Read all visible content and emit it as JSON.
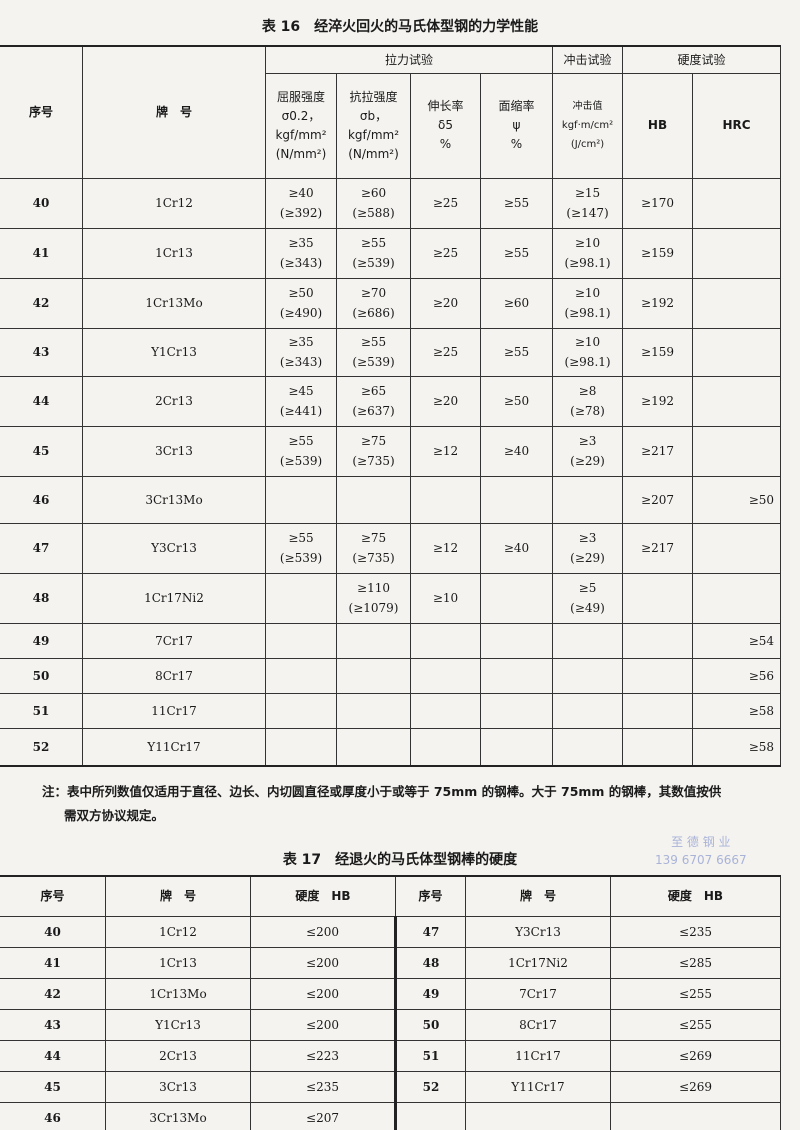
{
  "table16": {
    "title": "表 16　经淬火回火的马氏体型钢的力学性能",
    "headers": {
      "no": "序号",
      "grade": "牌　号",
      "tensile_group": "拉力试验",
      "impact_group": "冲击试验",
      "hardness_group": "硬度试验",
      "yield": [
        "屈服强度",
        "σ0.2，",
        "kgf/mm²",
        "(N/mm²)"
      ],
      "tensile": [
        "抗拉强度",
        "σb，",
        "kgf/mm²",
        "(N/mm²)"
      ],
      "elong": [
        "伸长率",
        "δ5",
        "%"
      ],
      "reduction": [
        "面缩率",
        "ψ",
        "%"
      ],
      "impact": [
        "冲击值",
        "kgf·m/cm²",
        "(J/cm²)"
      ],
      "hb": "HB",
      "hrc": "HRC"
    },
    "rows": [
      {
        "no": "40",
        "grade": "1Cr12",
        "yield": [
          "≥40",
          "(≥392)"
        ],
        "tensile": [
          "≥60",
          "(≥588)"
        ],
        "elong": "≥25",
        "red": "≥55",
        "impact": [
          "≥15",
          "(≥147)"
        ],
        "hb": "≥170",
        "hrc": ""
      },
      {
        "no": "41",
        "grade": "1Cr13",
        "yield": [
          "≥35",
          "(≥343)"
        ],
        "tensile": [
          "≥55",
          "(≥539)"
        ],
        "elong": "≥25",
        "red": "≥55",
        "impact": [
          "≥10",
          "(≥98.1)"
        ],
        "hb": "≥159",
        "hrc": ""
      },
      {
        "no": "42",
        "grade": "1Cr13Mo",
        "yield": [
          "≥50",
          "(≥490)"
        ],
        "tensile": [
          "≥70",
          "(≥686)"
        ],
        "elong": "≥20",
        "red": "≥60",
        "impact": [
          "≥10",
          "(≥98.1)"
        ],
        "hb": "≥192",
        "hrc": ""
      },
      {
        "no": "43",
        "grade": "Y1Cr13",
        "yield": [
          "≥35",
          "(≥343)"
        ],
        "tensile": [
          "≥55",
          "(≥539)"
        ],
        "elong": "≥25",
        "red": "≥55",
        "impact": [
          "≥10",
          "(≥98.1)"
        ],
        "hb": "≥159",
        "hrc": ""
      },
      {
        "no": "44",
        "grade": "2Cr13",
        "yield": [
          "≥45",
          "(≥441)"
        ],
        "tensile": [
          "≥65",
          "(≥637)"
        ],
        "elong": "≥20",
        "red": "≥50",
        "impact": [
          "≥8",
          "(≥78)"
        ],
        "hb": "≥192",
        "hrc": ""
      },
      {
        "no": "45",
        "grade": "3Cr13",
        "yield": [
          "≥55",
          "(≥539)"
        ],
        "tensile": [
          "≥75",
          "(≥735)"
        ],
        "elong": "≥12",
        "red": "≥40",
        "impact": [
          "≥3",
          "(≥29)"
        ],
        "hb": "≥217",
        "hrc": ""
      },
      {
        "no": "46",
        "grade": "3Cr13Mo",
        "yield": [
          "",
          ""
        ],
        "tensile": [
          "",
          ""
        ],
        "elong": "",
        "red": "",
        "impact": [
          "",
          ""
        ],
        "hb": "≥207",
        "hrc": "≥50"
      },
      {
        "no": "47",
        "grade": "Y3Cr13",
        "yield": [
          "≥55",
          "(≥539)"
        ],
        "tensile": [
          "≥75",
          "(≥735)"
        ],
        "elong": "≥12",
        "red": "≥40",
        "impact": [
          "≥3",
          "(≥29)"
        ],
        "hb": "≥217",
        "hrc": ""
      },
      {
        "no": "48",
        "grade": "1Cr17Ni2",
        "yield": [
          "",
          ""
        ],
        "tensile": [
          "≥110",
          "(≥1079)"
        ],
        "elong": "≥10",
        "red": "",
        "impact": [
          "≥5",
          "(≥49)"
        ],
        "hb": "",
        "hrc": ""
      },
      {
        "no": "49",
        "grade": "7Cr17",
        "yield": [
          "",
          ""
        ],
        "tensile": [
          "",
          ""
        ],
        "elong": "",
        "red": "",
        "impact": [
          "",
          ""
        ],
        "hb": "",
        "hrc": "≥54"
      },
      {
        "no": "50",
        "grade": "8Cr17",
        "yield": [
          "",
          ""
        ],
        "tensile": [
          "",
          ""
        ],
        "elong": "",
        "red": "",
        "impact": [
          "",
          ""
        ],
        "hb": "",
        "hrc": "≥56"
      },
      {
        "no": "51",
        "grade": "11Cr17",
        "yield": [
          "",
          ""
        ],
        "tensile": [
          "",
          ""
        ],
        "elong": "",
        "red": "",
        "impact": [
          "",
          ""
        ],
        "hb": "",
        "hrc": "≥58"
      },
      {
        "no": "52",
        "grade": "Y11Cr17",
        "yield": [
          "",
          ""
        ],
        "tensile": [
          "",
          ""
        ],
        "elong": "",
        "red": "",
        "impact": [
          "",
          ""
        ],
        "hb": "",
        "hrc": "≥58"
      }
    ],
    "note_line1": "注：表中所列数值仅适用于直径、边长、内切圆直径或厚度小于或等于 75mm 的钢棒。大于 75mm 的钢棒，其数值按供",
    "note_line2": "需双方协议规定。"
  },
  "watermark": {
    "line1": "至 德 钢 业",
    "line2": "139 6707 6667"
  },
  "table17": {
    "title": "表 17　经退火的马氏体型钢棒的硬度",
    "headers": [
      "序号",
      "牌　号",
      "硬度　HB",
      "序号",
      "牌　号",
      "硬度　HB"
    ],
    "rows": [
      [
        "40",
        "1Cr12",
        "≤200",
        "47",
        "Y3Cr13",
        "≤235"
      ],
      [
        "41",
        "1Cr13",
        "≤200",
        "48",
        "1Cr17Ni2",
        "≤285"
      ],
      [
        "42",
        "1Cr13Mo",
        "≤200",
        "49",
        "7Cr17",
        "≤255"
      ],
      [
        "43",
        "Y1Cr13",
        "≤200",
        "50",
        "8Cr17",
        "≤255"
      ],
      [
        "44",
        "2Cr13",
        "≤223",
        "51",
        "11Cr17",
        "≤269"
      ],
      [
        "45",
        "3Cr13",
        "≤235",
        "52",
        "Y11Cr17",
        "≤269"
      ],
      [
        "46",
        "3Cr13Mo",
        "≤207",
        "",
        "",
        " "
      ]
    ]
  }
}
